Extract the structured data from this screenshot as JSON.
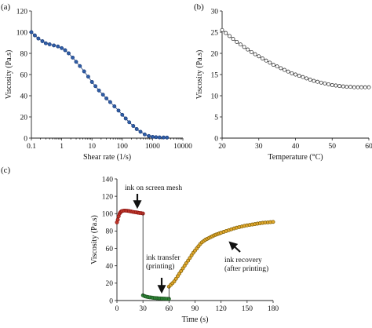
{
  "chart_data": [
    {
      "id": "a",
      "panel_label": "(a)",
      "type": "scatter",
      "xscale": "log",
      "xlabel": "Shear rate (1/s)",
      "ylabel": "Viscosity (Pa.s)",
      "xlim": [
        0.1,
        10000
      ],
      "ylim": [
        0,
        120
      ],
      "xticks": [
        0.1,
        1,
        10,
        100,
        1000,
        10000
      ],
      "xtick_labels": [
        "0.1",
        "1",
        "10",
        "100",
        "1000",
        "10000"
      ],
      "yticks": [
        0,
        20,
        40,
        60,
        80,
        100,
        120
      ],
      "series": [
        {
          "color": "#1f3f7a",
          "marker_fill": "#2f5ea8",
          "points": [
            [
              0.1,
              100
            ],
            [
              0.13,
              97
            ],
            [
              0.17,
              94
            ],
            [
              0.23,
              91.5
            ],
            [
              0.3,
              89.5
            ],
            [
              0.4,
              88.5
            ],
            [
              0.55,
              87.5
            ],
            [
              0.75,
              86.5
            ],
            [
              1.0,
              85
            ],
            [
              1.3,
              83
            ],
            [
              1.7,
              80
            ],
            [
              2.3,
              76
            ],
            [
              3.0,
              72
            ],
            [
              4.0,
              68
            ],
            [
              5.5,
              63
            ],
            [
              7.5,
              58
            ],
            [
              10,
              53
            ],
            [
              13,
              49
            ],
            [
              17,
              45
            ],
            [
              23,
              41
            ],
            [
              30,
              37.5
            ],
            [
              40,
              34
            ],
            [
              55,
              30
            ],
            [
              75,
              26
            ],
            [
              100,
              22
            ],
            [
              130,
              18.5
            ],
            [
              170,
              15
            ],
            [
              230,
              11.5
            ],
            [
              300,
              8.5
            ],
            [
              400,
              6
            ],
            [
              550,
              3.5
            ],
            [
              750,
              2
            ],
            [
              1000,
              1.2
            ],
            [
              1300,
              0.9
            ],
            [
              1700,
              0.7
            ],
            [
              2300,
              0.6
            ],
            [
              3000,
              0.5
            ]
          ]
        }
      ]
    },
    {
      "id": "b",
      "panel_label": "(b)",
      "type": "scatter",
      "xlabel": "Temperature (°C)",
      "ylabel": "Viscosity (Pa.s)",
      "xlim": [
        20,
        60
      ],
      "ylim": [
        0,
        30
      ],
      "xticks": [
        20,
        30,
        40,
        50,
        60
      ],
      "yticks": [
        0,
        5,
        10,
        15,
        20,
        25,
        30
      ],
      "series": [
        {
          "color": "#222222",
          "marker_fill": "#ffffff",
          "points": [
            [
              20,
              25.5
            ],
            [
              21,
              24.8
            ],
            [
              22,
              24.1
            ],
            [
              23,
              23.4
            ],
            [
              24,
              22.7
            ],
            [
              25,
              22.1
            ],
            [
              26,
              21.5
            ],
            [
              27,
              20.9
            ],
            [
              28,
              20.3
            ],
            [
              29,
              19.8
            ],
            [
              30,
              19.3
            ],
            [
              31,
              18.8
            ],
            [
              32,
              18.3
            ],
            [
              33,
              17.8
            ],
            [
              34,
              17.3
            ],
            [
              35,
              16.9
            ],
            [
              36,
              16.5
            ],
            [
              37,
              16.1
            ],
            [
              38,
              15.7
            ],
            [
              39,
              15.3
            ],
            [
              40,
              15.0
            ],
            [
              41,
              14.7
            ],
            [
              42,
              14.4
            ],
            [
              43,
              14.1
            ],
            [
              44,
              13.8
            ],
            [
              45,
              13.5
            ],
            [
              46,
              13.3
            ],
            [
              47,
              13.1
            ],
            [
              48,
              12.9
            ],
            [
              49,
              12.7
            ],
            [
              50,
              12.5
            ],
            [
              51,
              12.4
            ],
            [
              52,
              12.3
            ],
            [
              53,
              12.2
            ],
            [
              54,
              12.1
            ],
            [
              55,
              12.1
            ],
            [
              56,
              12.0
            ],
            [
              57,
              12.0
            ],
            [
              58,
              12.0
            ],
            [
              59,
              12.0
            ],
            [
              60,
              12.0
            ]
          ]
        }
      ]
    },
    {
      "id": "c",
      "panel_label": "(c)",
      "type": "scatter",
      "xlabel": "Time (s)",
      "ylabel": "Viscosity (Pa.s)",
      "xlim": [
        0,
        180
      ],
      "ylim": [
        0,
        140
      ],
      "xticks": [
        0,
        30,
        60,
        90,
        120,
        150,
        180
      ],
      "yticks": [
        0,
        20,
        40,
        60,
        80,
        100,
        120,
        140
      ],
      "connect_segments": true,
      "series": [
        {
          "color": "#8a1010",
          "marker_fill": "#c0392b",
          "points": [
            [
              0,
              90
            ],
            [
              1,
              93
            ],
            [
              2,
              97
            ],
            [
              3,
              100
            ],
            [
              4,
              101.5
            ],
            [
              5,
              102.5
            ],
            [
              6,
              103
            ],
            [
              8,
              103.5
            ],
            [
              10,
              103.5
            ],
            [
              12,
              103.2
            ],
            [
              14,
              103
            ],
            [
              16,
              102.6
            ],
            [
              18,
              102.2
            ],
            [
              20,
              101.8
            ],
            [
              22,
              101.5
            ],
            [
              24,
              101.2
            ],
            [
              26,
              100.8
            ],
            [
              28,
              100.5
            ],
            [
              30,
              100.2
            ]
          ]
        },
        {
          "color": "#1a4d1a",
          "marker_fill": "#2e8b3a",
          "points": [
            [
              30,
              6
            ],
            [
              32,
              5
            ],
            [
              34,
              4.4
            ],
            [
              36,
              4
            ],
            [
              38,
              3.7
            ],
            [
              40,
              3.4
            ],
            [
              42,
              3.1
            ],
            [
              44,
              2.9
            ],
            [
              46,
              2.7
            ],
            [
              48,
              2.5
            ],
            [
              50,
              2.4
            ],
            [
              52,
              2.3
            ],
            [
              54,
              2.2
            ],
            [
              56,
              2.1
            ],
            [
              58,
              2.0
            ],
            [
              60,
              2.0
            ]
          ]
        },
        {
          "color": "#7a5a00",
          "marker_fill": "#e0a82e",
          "points": [
            [
              60,
              16
            ],
            [
              62,
              18
            ],
            [
              64,
              20
            ],
            [
              66,
              22
            ],
            [
              68,
              25
            ],
            [
              70,
              28
            ],
            [
              72,
              31
            ],
            [
              74,
              34
            ],
            [
              76,
              37
            ],
            [
              78,
              40
            ],
            [
              80,
              43
            ],
            [
              82,
              46
            ],
            [
              84,
              49
            ],
            [
              86,
              52
            ],
            [
              88,
              55
            ],
            [
              90,
              57.5
            ],
            [
              92,
              60
            ],
            [
              94,
              62.5
            ],
            [
              96,
              65
            ],
            [
              98,
              67
            ],
            [
              100,
              68.5
            ],
            [
              102,
              70
            ],
            [
              104,
              71
            ],
            [
              106,
              72
            ],
            [
              108,
              73
            ],
            [
              110,
              74
            ],
            [
              112,
              75
            ],
            [
              114,
              75.8
            ],
            [
              116,
              76.5
            ],
            [
              118,
              77.2
            ],
            [
              120,
              78
            ],
            [
              123,
              79
            ],
            [
              126,
              80
            ],
            [
              129,
              81
            ],
            [
              132,
              82
            ],
            [
              135,
              83
            ],
            [
              138,
              83.8
            ],
            [
              141,
              84.5
            ],
            [
              144,
              85.2
            ],
            [
              147,
              86
            ],
            [
              150,
              86.5
            ],
            [
              153,
              87
            ],
            [
              156,
              87.5
            ],
            [
              159,
              88
            ],
            [
              162,
              88.5
            ],
            [
              165,
              89
            ],
            [
              168,
              89.4
            ],
            [
              171,
              89.7
            ],
            [
              174,
              90
            ],
            [
              177,
              90.2
            ],
            [
              180,
              90.5
            ]
          ]
        }
      ],
      "annotations": [
        {
          "lines": [
            "ink on screen mesh"
          ],
          "arrow_to": [
            17,
            106
          ]
        },
        {
          "lines": [
            "ink transfer",
            "(printing)"
          ],
          "arrow_to": [
            46,
            6
          ]
        },
        {
          "lines": [
            "ink recovery",
            "(after printing)"
          ],
          "arrow_to": [
            124,
            83
          ]
        }
      ]
    }
  ]
}
